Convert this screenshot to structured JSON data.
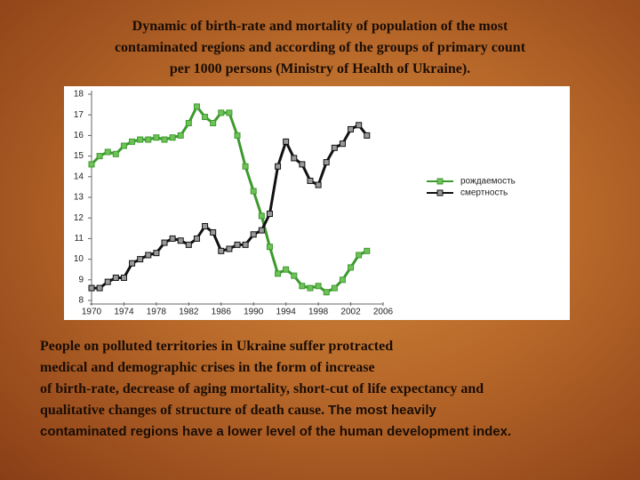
{
  "slide": {
    "title_lines": [
      "Dynamic  of  birth-rate  and mortality of population of the most",
      "contaminated  regions   and according of  the groups of primary count",
      "per 1000 persons (Ministry  of Health of Ukraine)."
    ],
    "body_serif_lines": [
      "People  on  polluted territories  in Ukraine suffer protracted",
      "medical and  demographic   crises   in the form  of  increase",
      "of birth-rate, decrease of aging  mortality, short-cut of life expectancy and",
      "qualitative changes of  structure  of  death cause."
    ],
    "body_sans_lines": [
      "The most heavily",
      "contaminated regions have a lower  level of the human development index."
    ]
  },
  "chart_data": {
    "type": "line",
    "x": [
      1970,
      1971,
      1972,
      1973,
      1974,
      1975,
      1976,
      1977,
      1978,
      1979,
      1980,
      1981,
      1982,
      1983,
      1984,
      1985,
      1986,
      1987,
      1988,
      1989,
      1990,
      1991,
      1992,
      1993,
      1994,
      1995,
      1996,
      1997,
      1998,
      1999,
      2000,
      2001,
      2002,
      2003,
      2004
    ],
    "series": [
      {
        "name": "рождаемость",
        "color": "#3c9a2c",
        "marker_fill": "#6fc25a",
        "values": [
          14.6,
          15.0,
          15.2,
          15.1,
          15.5,
          15.7,
          15.8,
          15.8,
          15.9,
          15.8,
          15.9,
          16.0,
          16.6,
          17.4,
          16.9,
          16.6,
          17.1,
          17.1,
          16.0,
          14.5,
          13.3,
          12.1,
          10.6,
          9.3,
          9.5,
          9.2,
          8.7,
          8.6,
          8.7,
          8.4,
          8.6,
          9.0,
          9.6,
          10.2,
          10.4
        ]
      },
      {
        "name": "смертность",
        "color": "#111111",
        "marker_fill": "#9a9a9a",
        "values": [
          8.6,
          8.6,
          8.9,
          9.1,
          9.1,
          9.8,
          10.0,
          10.2,
          10.3,
          10.8,
          11.0,
          10.9,
          10.7,
          11.0,
          11.6,
          11.3,
          10.4,
          10.5,
          10.7,
          10.7,
          11.2,
          11.4,
          12.2,
          14.5,
          15.7,
          14.9,
          14.6,
          13.8,
          13.6,
          14.7,
          15.4,
          15.6,
          16.3,
          16.5,
          16.0
        ]
      }
    ],
    "xlim": [
      1970,
      2006
    ],
    "xticks": [
      1970,
      1974,
      1978,
      1982,
      1986,
      1990,
      1994,
      1998,
      2002,
      2006
    ],
    "ylim": [
      8,
      18
    ],
    "yticks": [
      8,
      9,
      10,
      11,
      12,
      13,
      14,
      15,
      16,
      17,
      18
    ],
    "legend": "right",
    "grid": false
  }
}
